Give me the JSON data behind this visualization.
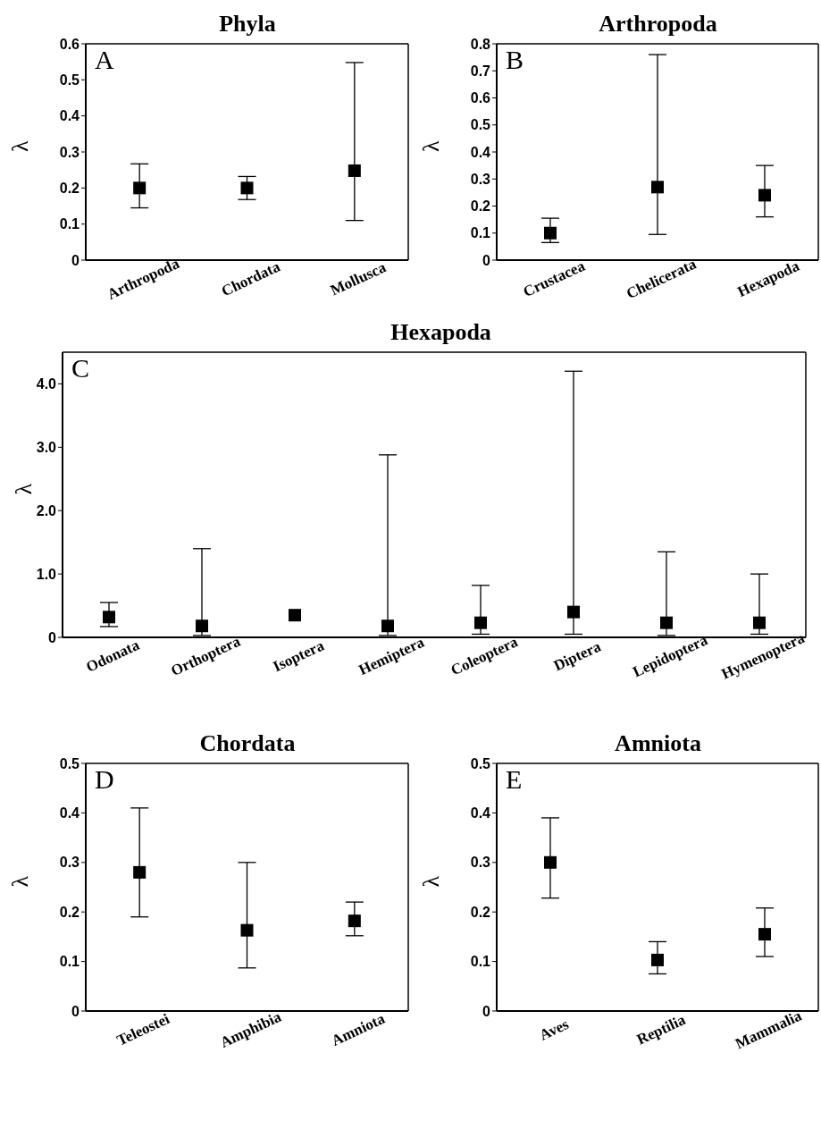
{
  "chart_data": [
    {
      "type": "scatter",
      "title": "Phyla",
      "ylabel": "λ",
      "annotations": [
        "A"
      ],
      "marker": "square",
      "categories": [
        "Arthropoda",
        "Chordata",
        "Mollusca"
      ],
      "series": [
        {
          "color": "#000000",
          "values": [
            0.2,
            0.2,
            0.248
          ],
          "errors": [
            [
              0.145,
              0.267
            ],
            [
              0.168,
              0.232
            ],
            [
              0.11,
              0.548
            ]
          ]
        }
      ],
      "ylim": [
        0,
        0.6
      ],
      "yticks": [
        0,
        0.1,
        0.2,
        0.3,
        0.4,
        0.5,
        0.6
      ],
      "grid": false,
      "legend": false
    },
    {
      "type": "scatter",
      "title": "Arthropoda",
      "ylabel": "λ",
      "annotations": [
        "B"
      ],
      "marker": "square",
      "categories": [
        "Crustacea",
        "Chelicerata",
        "Hexapoda"
      ],
      "series": [
        {
          "color": "#000000",
          "values": [
            0.1,
            0.27,
            0.24
          ],
          "errors": [
            [
              0.065,
              0.155
            ],
            [
              0.095,
              0.76
            ],
            [
              0.16,
              0.35
            ]
          ]
        }
      ],
      "ylim": [
        0,
        0.8
      ],
      "yticks": [
        0,
        0.1,
        0.2,
        0.3,
        0.4,
        0.5,
        0.6,
        0.7,
        0.8
      ],
      "grid": false,
      "legend": false
    },
    {
      "type": "scatter",
      "title": "Hexapoda",
      "ylabel": "λ",
      "annotations": [
        "C"
      ],
      "marker": "square",
      "categories": [
        "Odonata",
        "Orthoptera",
        "Isoptera",
        "Hemiptera",
        "Coleoptera",
        "Diptera",
        "Lepidoptera",
        "Hymenoptera"
      ],
      "series": [
        {
          "color": "#000000",
          "values": [
            0.32,
            0.18,
            0.35,
            0.18,
            0.23,
            0.4,
            0.23,
            0.23
          ],
          "errors": [
            [
              0.17,
              0.55
            ],
            [
              0.03,
              1.4
            ],
            null,
            [
              0.03,
              2.88
            ],
            [
              0.05,
              0.82
            ],
            [
              0.05,
              4.2
            ],
            [
              0.03,
              1.35
            ],
            [
              0.05,
              1.0
            ]
          ]
        }
      ],
      "ylim": [
        0,
        4.5
      ],
      "yticks": [
        0,
        {
          "value": 1,
          "label": "1.0"
        },
        {
          "value": 2,
          "label": "2.0"
        },
        {
          "value": 3,
          "label": "3.0"
        },
        {
          "value": 4,
          "label": "4.0"
        }
      ],
      "grid": false,
      "legend": false
    },
    {
      "type": "scatter",
      "title": "Chordata",
      "ylabel": "λ",
      "annotations": [
        "D"
      ],
      "marker": "square",
      "categories": [
        "Teleostei",
        "Amphibia",
        "Amniota"
      ],
      "series": [
        {
          "color": "#000000",
          "values": [
            0.28,
            0.163,
            0.182
          ],
          "errors": [
            [
              0.19,
              0.41
            ],
            [
              0.087,
              0.3
            ],
            [
              0.152,
              0.22
            ]
          ]
        }
      ],
      "ylim": [
        0,
        0.5
      ],
      "yticks": [
        0,
        0.1,
        0.2,
        0.3,
        0.4,
        0.5
      ],
      "grid": false,
      "legend": false
    },
    {
      "type": "scatter",
      "title": "Amniota",
      "ylabel": "λ",
      "annotations": [
        "E"
      ],
      "marker": "square",
      "categories": [
        "Aves",
        "Reptilia",
        "Mammalia"
      ],
      "series": [
        {
          "color": "#000000",
          "values": [
            0.3,
            0.103,
            0.155
          ],
          "errors": [
            [
              0.228,
              0.39
            ],
            [
              0.075,
              0.14
            ],
            [
              0.11,
              0.208
            ]
          ]
        }
      ],
      "ylim": [
        0,
        0.5
      ],
      "yticks": [
        0,
        0.1,
        0.2,
        0.3,
        0.4,
        0.5
      ],
      "grid": false,
      "legend": false
    }
  ]
}
